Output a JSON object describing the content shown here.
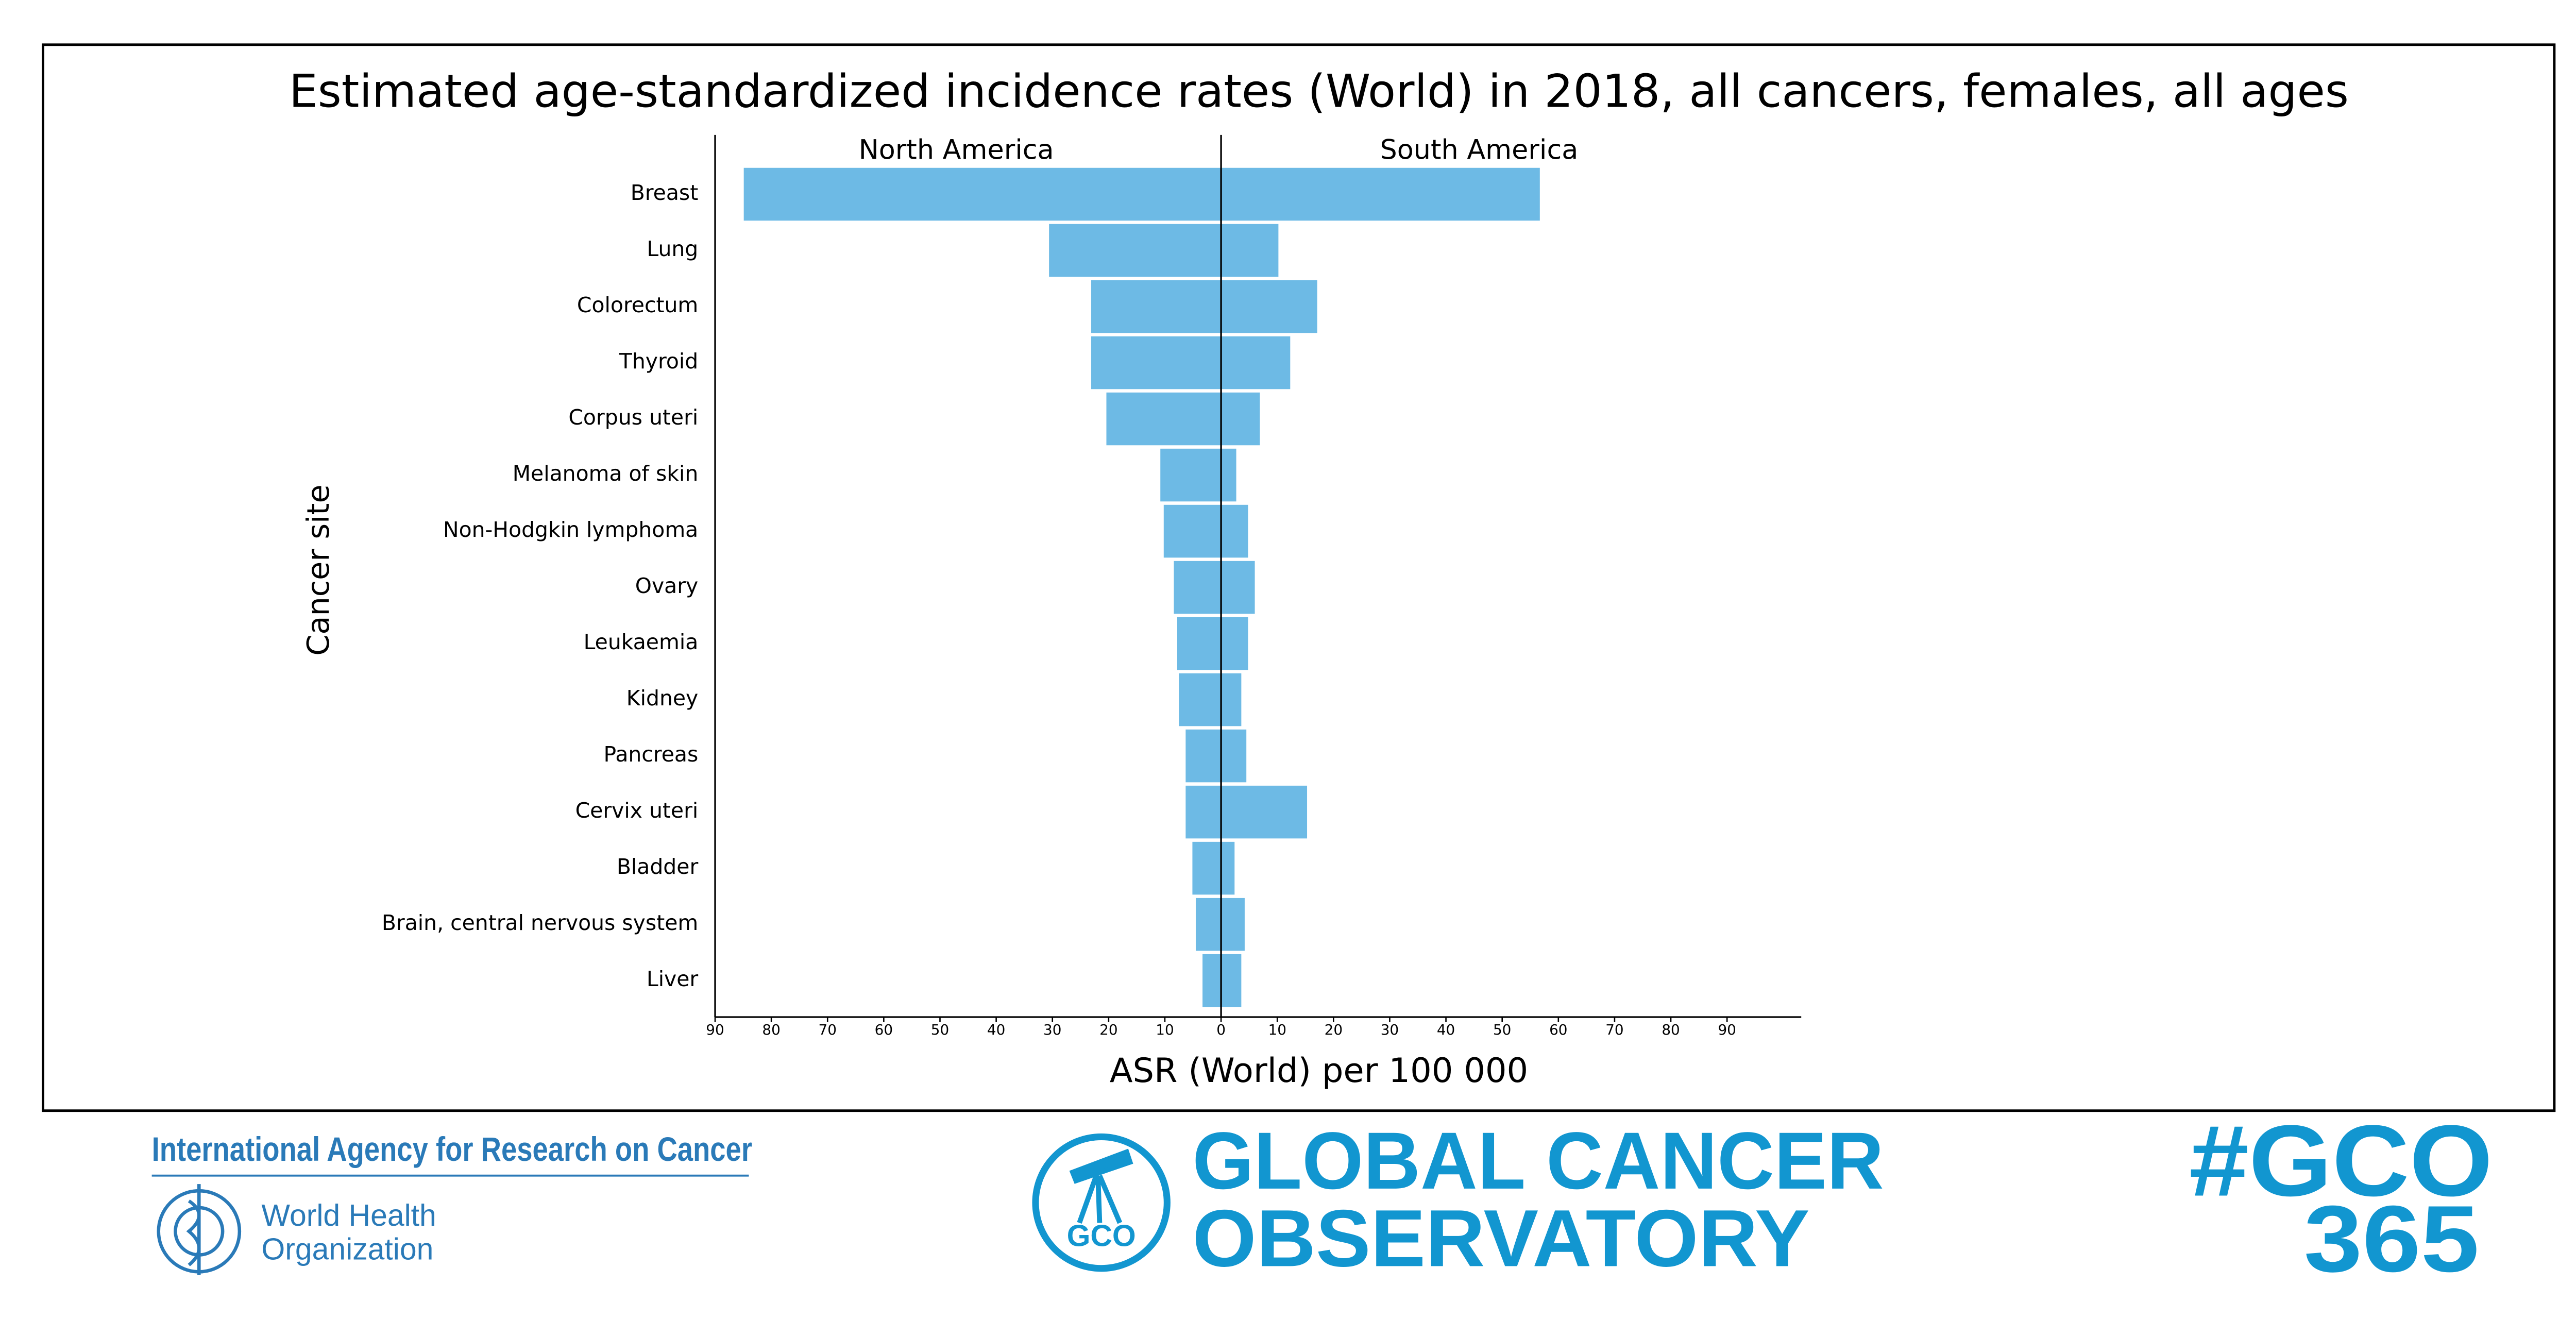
{
  "chart_data": {
    "type": "butterfly-bar",
    "title": "Estimated age-standardized incidence rates (World) in 2018, all cancers, females, all ages",
    "x_label": "ASR (World) per 100 000",
    "y_label": "Cancer site",
    "categories": [
      "Breast",
      "Lung",
      "Colorectum",
      "Thyroid",
      "Corpus uteri",
      "Melanoma of skin",
      "Non-Hodgkin lymphoma",
      "Ovary",
      "Leukaemia",
      "Kidney",
      "Pancreas",
      "Cervix uteri",
      "Bladder",
      "Brain, central nervous system",
      "Liver"
    ],
    "series": [
      {
        "name": "North America",
        "side": "left",
        "color": "#6dbae5",
        "values": [
          84.9,
          30.6,
          23.1,
          23.1,
          20.4,
          10.8,
          10.2,
          8.4,
          7.8,
          7.5,
          6.3,
          6.3,
          5.1,
          4.5,
          3.3
        ]
      },
      {
        "name": "South America",
        "side": "right",
        "color": "#6dbae5",
        "values": [
          56.7,
          10.2,
          17.1,
          12.3,
          6.9,
          2.7,
          4.8,
          6.0,
          4.8,
          3.6,
          4.5,
          15.3,
          2.4,
          4.2,
          3.6
        ]
      }
    ],
    "xlim": [
      -90,
      103.2
    ],
    "xticks": [
      {
        "value": -90,
        "label": "90"
      },
      {
        "value": -80,
        "label": "80"
      },
      {
        "value": -70,
        "label": "70"
      },
      {
        "value": -60,
        "label": "60"
      },
      {
        "value": -50,
        "label": "50"
      },
      {
        "value": -40,
        "label": "40"
      },
      {
        "value": -30,
        "label": "30"
      },
      {
        "value": -20,
        "label": "20"
      },
      {
        "value": -10,
        "label": "10"
      },
      0,
      10,
      20,
      30,
      40,
      50,
      60,
      70,
      80,
      90
    ],
    "grid": false
  },
  "footer": {
    "iarc": "International Agency for Research on Cancer",
    "who": [
      "World Health",
      "Organization"
    ],
    "gco_badge": "GCO",
    "gco": [
      "GLOBAL CANCER",
      "OBSERVATORY"
    ],
    "hashtag": [
      "#GCO",
      "365"
    ]
  }
}
